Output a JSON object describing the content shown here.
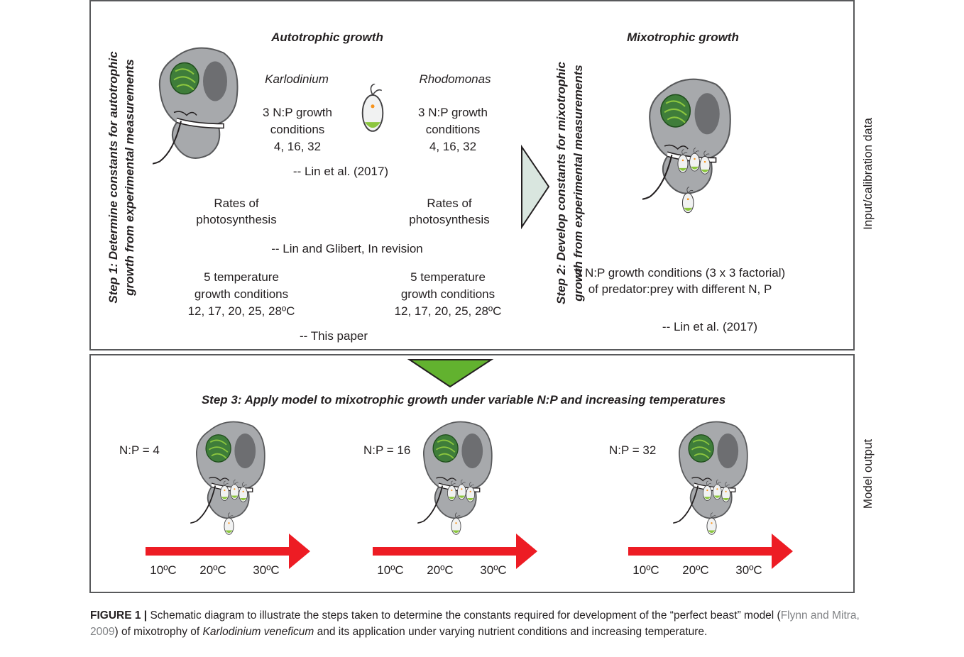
{
  "top_panel": {
    "step1_label": [
      "Step 1: Determine constants for autotrophic",
      "growth from experimental measurements"
    ],
    "autotrophic_title": "Autotrophic growth",
    "organisms": [
      "Karlodinium",
      "Rhodomonas"
    ],
    "np_conditions": [
      [
        "3 N:P growth",
        "conditions",
        "4, 16, 32"
      ],
      [
        "3 N:P growth",
        "conditions",
        "4, 16, 32"
      ]
    ],
    "np_source": "-- Lin et al. (2017)",
    "photosynthesis": [
      [
        "Rates of",
        "photosynthesis"
      ],
      [
        "Rates of",
        "photosynthesis"
      ]
    ],
    "photosynthesis_source": "-- Lin and Glibert, In revision",
    "temperature_conditions": [
      [
        "5 temperature",
        "growth conditions",
        "12, 17, 20, 25, 28ºC"
      ],
      [
        "5 temperature",
        "growth conditions",
        "12, 17, 20, 25, 28ºC"
      ]
    ],
    "temperature_source": "-- This paper",
    "step2_label": [
      "Step 2: Develop constants for mixotrophic",
      "growth from experimental measurements"
    ],
    "mixotrophic_title": "Mixotrophic growth",
    "mixotrophic_conditions": [
      "9 N:P growth conditions (3 x 3 factorial)",
      "of predator:prey with different N, P"
    ],
    "mixotrophic_source": "-- Lin et al. (2017)",
    "side_label": "Input/calibration data"
  },
  "bottom_panel": {
    "step3_label": "Step 3: Apply model to mixotrophic growth under variable N:P and increasing temperatures",
    "scenarios": [
      {
        "label": "N:P = 4",
        "temperatures": [
          "10ºC",
          "20ºC",
          "30ºC"
        ]
      },
      {
        "label": "N:P = 16",
        "temperatures": [
          "10ºC",
          "20ºC",
          "30ºC"
        ]
      },
      {
        "label": "N:P = 32",
        "temperatures": [
          "10ºC",
          "20ºC",
          "30ºC"
        ]
      }
    ],
    "side_label": "Model output"
  },
  "caption": {
    "label": "FIGURE 1 |",
    "text_1": " Schematic diagram to illustrate the steps taken to determine the constants required for development of the “perfect beast” model (",
    "reference": "Flynn and Mitra, 2009",
    "text_2": ") of mixotrophy of ",
    "species": "Karlodinium veneficum",
    "text_3": " and its application under varying nutrient conditions and increasing temperature."
  }
}
